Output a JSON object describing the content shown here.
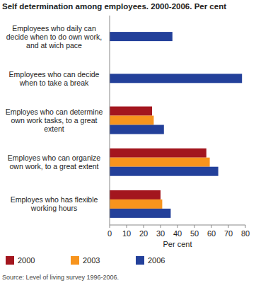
{
  "chart_data": {
    "type": "bar",
    "orientation": "horizontal",
    "title": "Self determination among employees. 2000-2006. Per cent",
    "x_label": "Per cent",
    "source": "Source: Level of living survey 1996-2006.",
    "categories": [
      "Employees who daily can decide when to do own work, and at wich pace",
      "Employees who can decide when to take a break",
      "Employes who can determine own work tasks, to a great extent",
      "Employes who can organize own work, to a great extent",
      "Employes who has flexible working hours"
    ],
    "series": [
      {
        "name": "2000",
        "color": "#a3161e",
        "values": [
          null,
          null,
          25,
          57,
          30
        ]
      },
      {
        "name": "2003",
        "color": "#f7941d",
        "values": [
          null,
          null,
          26,
          59,
          31
        ]
      },
      {
        "name": "2006",
        "color": "#23409a",
        "values": [
          37,
          78,
          32,
          64,
          36
        ]
      }
    ],
    "xlim": [
      0,
      80
    ],
    "xticks": [
      0,
      10,
      20,
      30,
      40,
      50,
      60,
      70,
      80
    ],
    "grid": false,
    "legend": "bottom"
  }
}
